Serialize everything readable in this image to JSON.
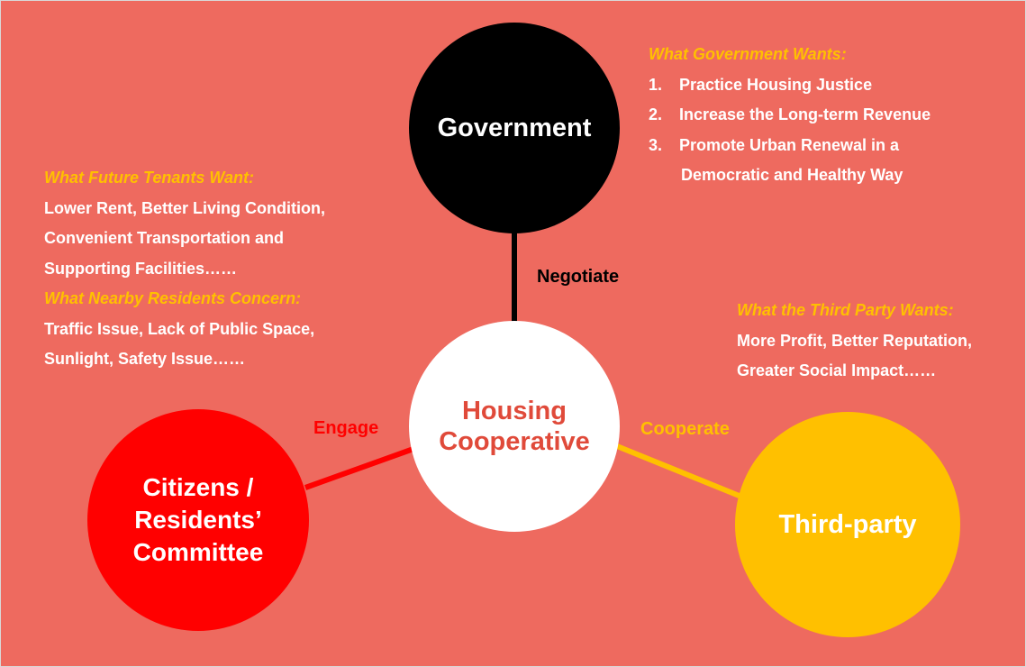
{
  "diagram": {
    "nodes": {
      "government": "Government",
      "cooperative": "Housing\nCooperative",
      "citizens": "Citizens /\nResidents’\nCommittee",
      "third_party": "Third-party"
    },
    "edges": {
      "negotiate": "Negotiate",
      "engage": "Engage",
      "cooperate": "Cooperate"
    },
    "colors": {
      "background": "#ee6a5f",
      "government": "#000000",
      "cooperative_text": "#e04a3a",
      "citizens": "#ff0000",
      "third_party": "#ffc000",
      "heading": "#ffc000"
    },
    "government_wants": {
      "heading": "What Government Wants:",
      "items": [
        {
          "num": "1.",
          "text": "Practice Housing Justice"
        },
        {
          "num": "2.",
          "text": "Increase the Long-term Revenue"
        },
        {
          "num": "3.",
          "text": "Promote Urban Renewal  in a"
        }
      ],
      "continuation": "Democratic and Healthy Way"
    },
    "tenants_want": {
      "heading": "What Future Tenants Want:",
      "lines": [
        "Lower Rent, Better Living Condition,",
        "Convenient Transportation and",
        "Supporting Facilities……"
      ]
    },
    "residents_concern": {
      "heading": "What Nearby Residents Concern:",
      "lines": [
        "Traffic Issue, Lack of Public Space,",
        "Sunlight, Safety Issue……"
      ]
    },
    "third_party_wants": {
      "heading": "What the Third Party Wants:",
      "lines": [
        "More Profit, Better Reputation,",
        "Greater Social Impact……"
      ]
    }
  }
}
